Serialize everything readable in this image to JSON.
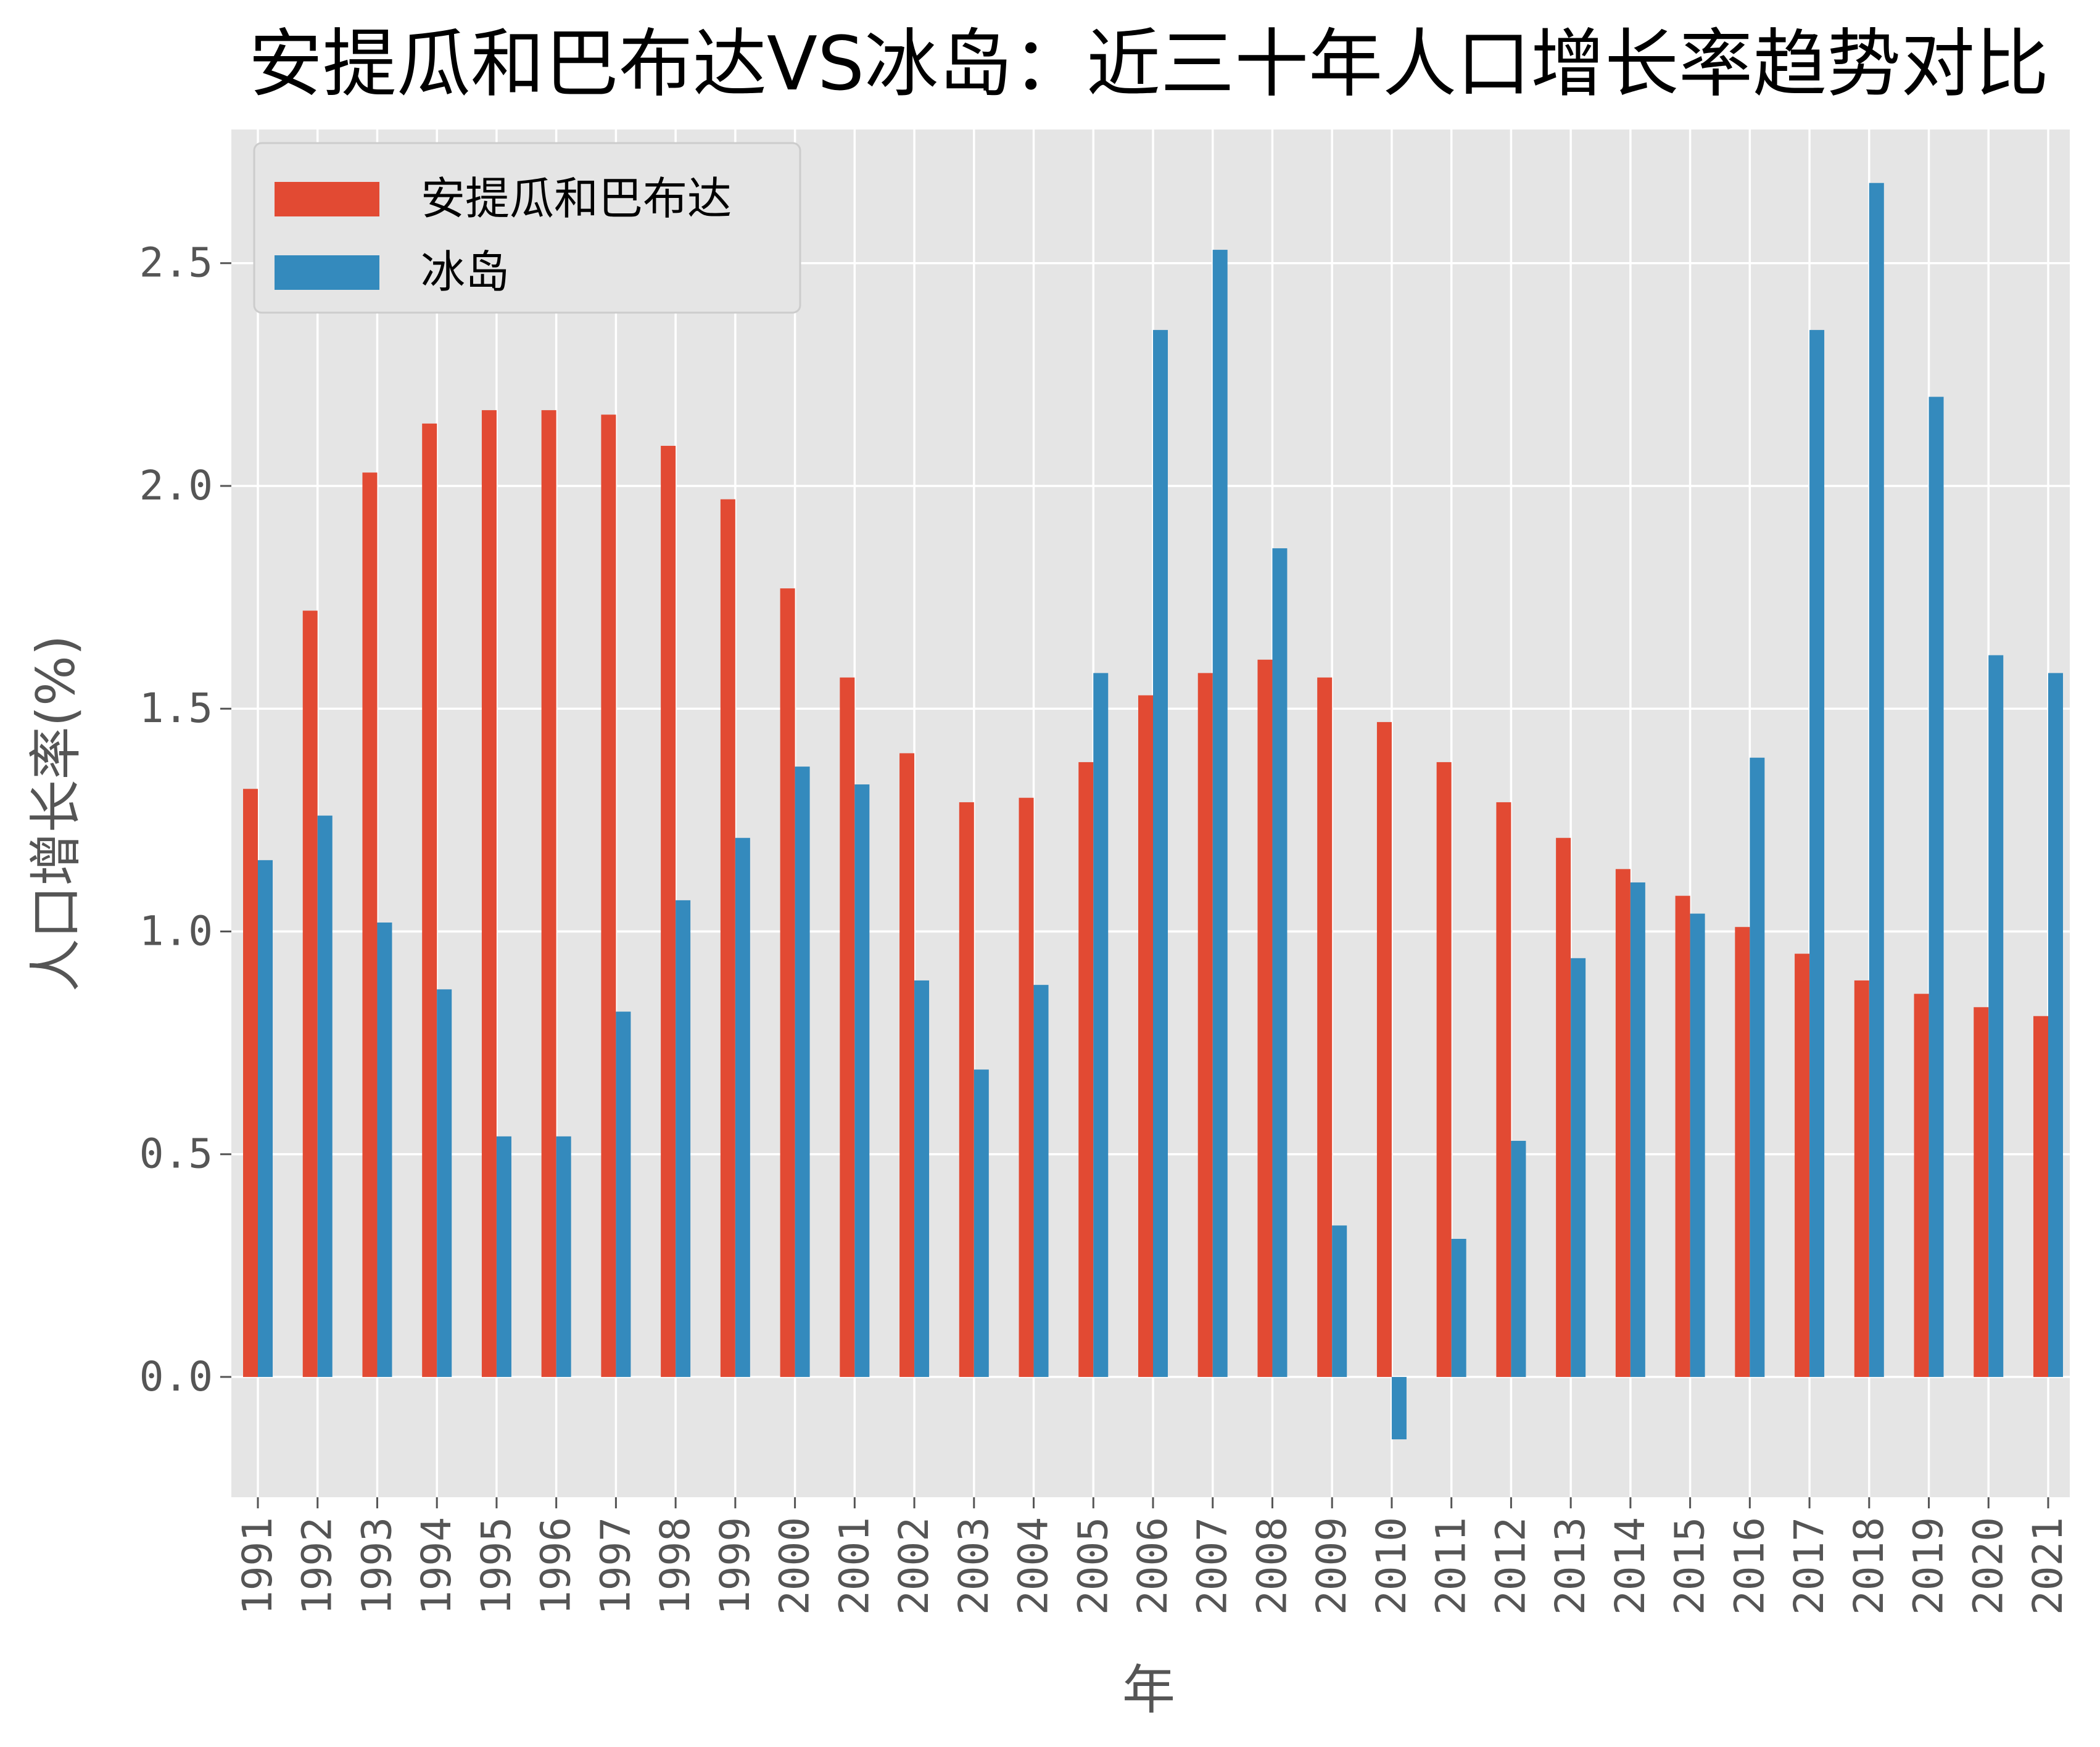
{
  "chart_data": {
    "type": "bar",
    "title": "安提瓜和巴布达VS冰岛：近三十年人口增长率趋势对比",
    "xlabel": "年",
    "ylabel": "人口增长率(%)",
    "categories": [
      "1991",
      "1992",
      "1993",
      "1994",
      "1995",
      "1996",
      "1997",
      "1998",
      "1999",
      "2000",
      "2001",
      "2002",
      "2003",
      "2004",
      "2005",
      "2006",
      "2007",
      "2008",
      "2009",
      "2010",
      "2011",
      "2012",
      "2013",
      "2014",
      "2015",
      "2016",
      "2017",
      "2018",
      "2019",
      "2020",
      "2021"
    ],
    "series": [
      {
        "name": "安提瓜和巴布达",
        "color": "#E24A33",
        "values": [
          1.32,
          1.72,
          2.03,
          2.14,
          2.17,
          2.17,
          2.16,
          2.09,
          1.97,
          1.77,
          1.57,
          1.4,
          1.29,
          1.3,
          1.38,
          1.53,
          1.58,
          1.61,
          1.57,
          1.47,
          1.38,
          1.29,
          1.21,
          1.14,
          1.08,
          1.01,
          0.95,
          0.89,
          0.86,
          0.83,
          0.81
        ]
      },
      {
        "name": "冰岛",
        "color": "#348ABD",
        "values": [
          1.16,
          1.26,
          1.02,
          0.87,
          0.54,
          0.54,
          0.82,
          1.07,
          1.21,
          1.37,
          1.33,
          0.89,
          0.69,
          0.88,
          1.58,
          2.35,
          2.53,
          1.86,
          0.34,
          -0.14,
          0.31,
          0.53,
          0.94,
          1.11,
          1.04,
          1.39,
          2.35,
          2.68,
          2.2,
          1.62,
          1.58
        ]
      }
    ],
    "yticks": [
      "0.0",
      "0.5",
      "1.0",
      "1.5",
      "2.0",
      "2.5"
    ],
    "ylim": [
      -0.27,
      2.8
    ],
    "grid": true,
    "legend": "top-left",
    "background": "#E5E5E5",
    "grid_color": "#FFFFFF"
  }
}
